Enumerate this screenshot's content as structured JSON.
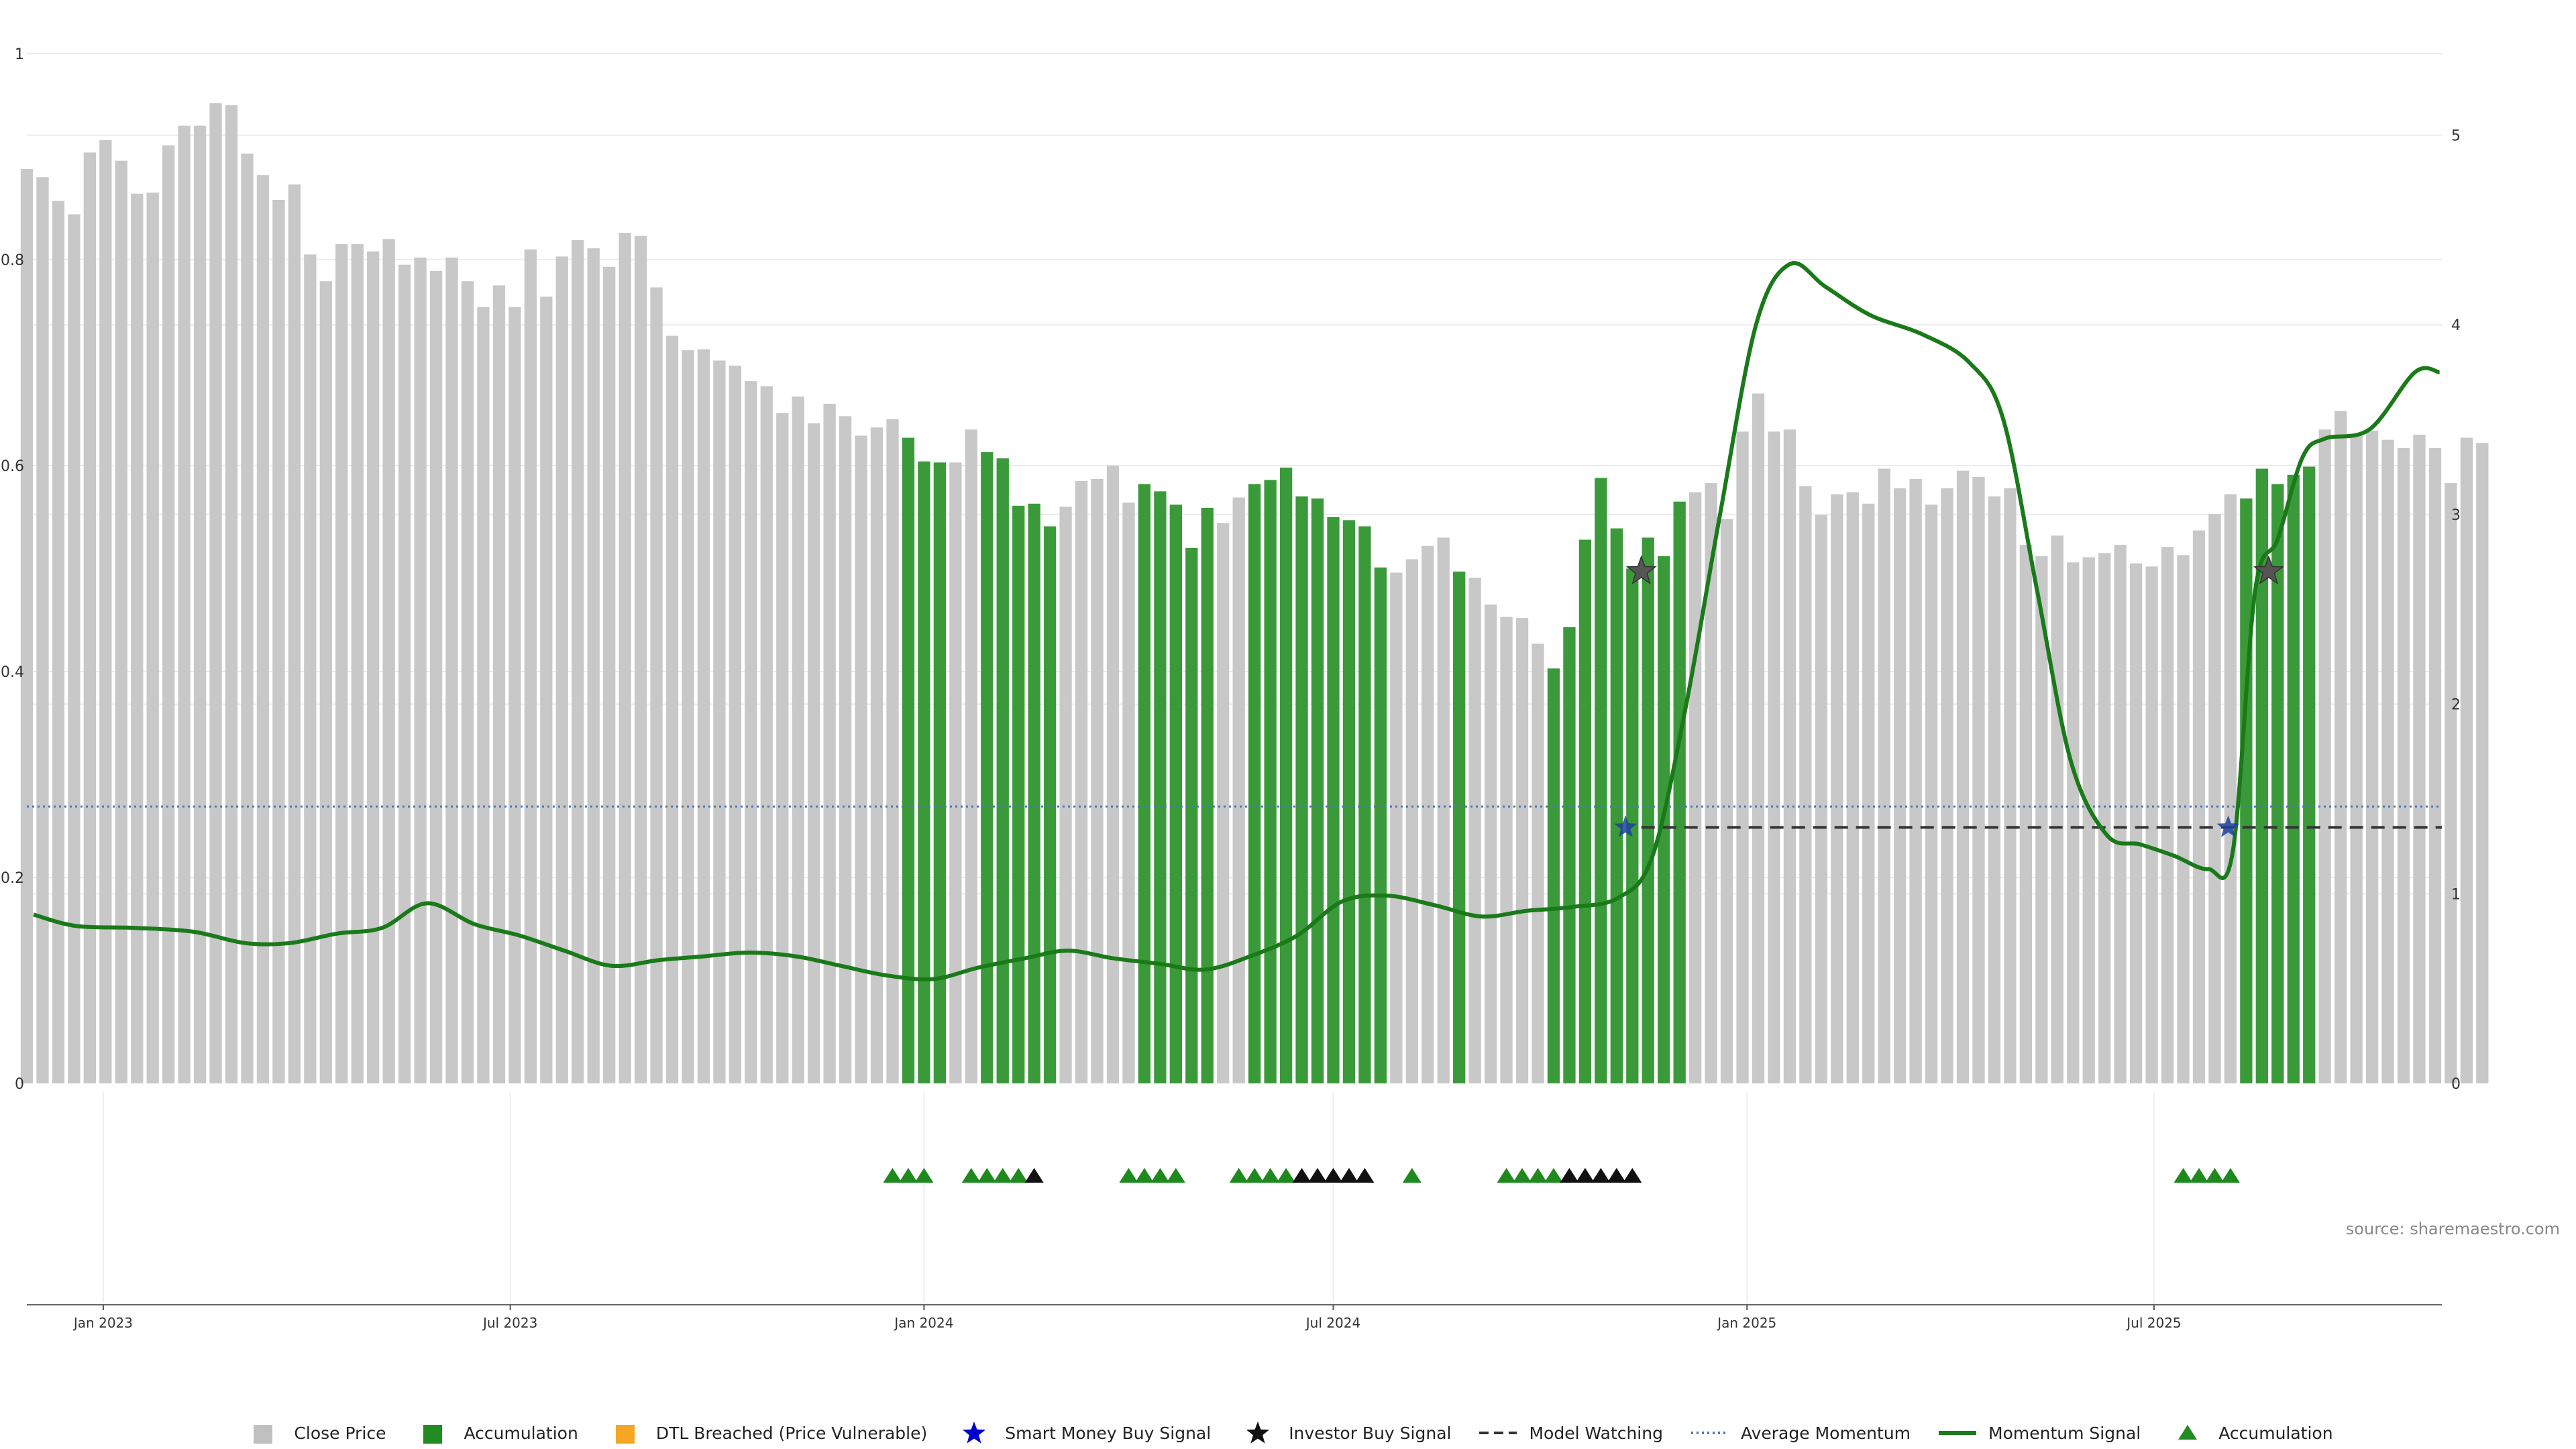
{
  "chart_data": {
    "type": "bar",
    "title": "",
    "source": "source: sharemaestro.com",
    "x_tick_labels": [
      "Jan 2023",
      "Jul 2023",
      "Jan 2024",
      "Jul 2024",
      "Jan 2025",
      "Jul 2025"
    ],
    "left_axis": {
      "ylim": [
        0,
        1
      ],
      "tick_labels": [
        "0",
        "0.2",
        "0.4",
        "0.6",
        "0.8",
        "1"
      ]
    },
    "right_axis": {
      "ylim": [
        0,
        5.43
      ],
      "tick_labels": [
        "0",
        "1",
        "2",
        "3",
        "4",
        "5"
      ]
    },
    "grid": true,
    "legend_position": "bottom",
    "x_range": [
      "2022-11-28",
      "2025-11-06"
    ],
    "close_price": {
      "start_date": "2022-11-28",
      "interval_days": 7,
      "values": [
        0.888,
        0.88,
        0.857,
        0.844,
        0.904,
        0.916,
        0.896,
        0.864,
        0.865,
        0.911,
        0.93,
        0.93,
        0.952,
        0.95,
        0.903,
        0.882,
        0.858,
        0.873,
        0.805,
        0.779,
        0.815,
        0.815,
        0.808,
        0.82,
        0.795,
        0.802,
        0.789,
        0.802,
        0.779,
        0.754,
        0.775,
        0.754,
        0.81,
        0.764,
        0.803,
        0.819,
        0.811,
        0.793,
        0.826,
        0.823,
        0.773,
        0.726,
        0.712,
        0.713,
        0.702,
        0.697,
        0.682,
        0.677,
        0.651,
        0.667,
        0.641,
        0.66,
        0.648,
        0.629,
        0.637,
        0.645,
        0.627,
        0.604,
        0.603,
        0.603,
        0.635,
        0.613,
        0.607,
        0.561,
        0.563,
        0.541,
        0.56,
        0.585,
        0.587,
        0.6,
        0.564,
        0.582,
        0.575,
        0.562,
        0.52,
        0.559,
        0.544,
        0.569,
        0.582,
        0.586,
        0.598,
        0.57,
        0.568,
        0.55,
        0.547,
        0.541,
        0.501,
        0.496,
        0.509,
        0.522,
        0.53,
        0.497,
        0.491,
        0.465,
        0.453,
        0.452,
        0.427,
        0.403,
        0.443,
        0.528,
        0.588,
        0.539,
        0.5,
        0.53,
        0.512,
        0.565,
        0.574,
        0.583,
        0.548,
        0.633,
        0.67,
        0.633,
        0.635,
        0.58,
        0.552,
        0.572,
        0.574,
        0.563,
        0.597,
        0.578,
        0.587,
        0.562,
        0.578,
        0.595,
        0.589,
        0.57,
        0.578,
        0.523,
        0.512,
        0.532,
        0.506,
        0.511,
        0.515,
        0.523,
        0.505,
        0.502,
        0.521,
        0.513,
        0.537,
        0.553,
        0.572,
        0.568,
        0.597,
        0.582,
        0.591,
        0.599,
        0.635,
        0.653,
        0.63,
        0.634,
        0.625,
        0.617,
        0.63,
        0.617,
        0.583,
        0.627,
        0.622
      ],
      "accumulation_indices": [
        56,
        57,
        58,
        61,
        62,
        63,
        64,
        65,
        71,
        72,
        73,
        74,
        75,
        78,
        79,
        80,
        81,
        82,
        83,
        84,
        85,
        86,
        91,
        97,
        98,
        99,
        100,
        101,
        102,
        103,
        104,
        105,
        141,
        142,
        143,
        144,
        145
      ]
    },
    "accumulation_markers": [
      {
        "date": "2023-12-18",
        "color": "green"
      },
      {
        "date": "2023-12-25",
        "color": "green"
      },
      {
        "date": "2024-01-01",
        "color": "green"
      },
      {
        "date": "2024-01-22",
        "color": "green"
      },
      {
        "date": "2024-01-29",
        "color": "green"
      },
      {
        "date": "2024-02-05",
        "color": "green"
      },
      {
        "date": "2024-02-12",
        "color": "green"
      },
      {
        "date": "2024-02-19",
        "color": "black"
      },
      {
        "date": "2024-04-01",
        "color": "green"
      },
      {
        "date": "2024-04-08",
        "color": "green"
      },
      {
        "date": "2024-04-15",
        "color": "green"
      },
      {
        "date": "2024-04-22",
        "color": "green"
      },
      {
        "date": "2024-05-20",
        "color": "green"
      },
      {
        "date": "2024-05-27",
        "color": "green"
      },
      {
        "date": "2024-06-03",
        "color": "green"
      },
      {
        "date": "2024-06-10",
        "color": "green"
      },
      {
        "date": "2024-06-17",
        "color": "black"
      },
      {
        "date": "2024-06-24",
        "color": "black"
      },
      {
        "date": "2024-07-01",
        "color": "black"
      },
      {
        "date": "2024-07-08",
        "color": "black"
      },
      {
        "date": "2024-07-15",
        "color": "black"
      },
      {
        "date": "2024-08-05",
        "color": "green"
      },
      {
        "date": "2024-09-16",
        "color": "green"
      },
      {
        "date": "2024-09-23",
        "color": "green"
      },
      {
        "date": "2024-09-30",
        "color": "green"
      },
      {
        "date": "2024-10-07",
        "color": "green"
      },
      {
        "date": "2024-10-14",
        "color": "black"
      },
      {
        "date": "2024-10-21",
        "color": "black"
      },
      {
        "date": "2024-10-28",
        "color": "black"
      },
      {
        "date": "2024-11-04",
        "color": "black"
      },
      {
        "date": "2024-11-11",
        "color": "black"
      },
      {
        "date": "2025-07-14",
        "color": "green"
      },
      {
        "date": "2025-07-21",
        "color": "green"
      },
      {
        "date": "2025-07-28",
        "color": "green"
      },
      {
        "date": "2025-08-04",
        "color": "green"
      }
    ],
    "momentum_signal": [
      {
        "date": "2022-12-01",
        "y": 0.89
      },
      {
        "date": "2022-12-20",
        "y": 0.83
      },
      {
        "date": "2023-01-15",
        "y": 0.82
      },
      {
        "date": "2023-02-10",
        "y": 0.8
      },
      {
        "date": "2023-03-05",
        "y": 0.74
      },
      {
        "date": "2023-03-25",
        "y": 0.74
      },
      {
        "date": "2023-04-15",
        "y": 0.79
      },
      {
        "date": "2023-05-05",
        "y": 0.82
      },
      {
        "date": "2023-05-25",
        "y": 0.95
      },
      {
        "date": "2023-06-15",
        "y": 0.84
      },
      {
        "date": "2023-07-05",
        "y": 0.78
      },
      {
        "date": "2023-07-25",
        "y": 0.7
      },
      {
        "date": "2023-08-15",
        "y": 0.62
      },
      {
        "date": "2023-09-05",
        "y": 0.65
      },
      {
        "date": "2023-09-25",
        "y": 0.67
      },
      {
        "date": "2023-10-15",
        "y": 0.69
      },
      {
        "date": "2023-11-05",
        "y": 0.67
      },
      {
        "date": "2023-11-25",
        "y": 0.62
      },
      {
        "date": "2023-12-15",
        "y": 0.57
      },
      {
        "date": "2024-01-05",
        "y": 0.55
      },
      {
        "date": "2024-01-25",
        "y": 0.61
      },
      {
        "date": "2024-02-15",
        "y": 0.66
      },
      {
        "date": "2024-03-05",
        "y": 0.7
      },
      {
        "date": "2024-03-25",
        "y": 0.66
      },
      {
        "date": "2024-04-15",
        "y": 0.63
      },
      {
        "date": "2024-05-05",
        "y": 0.6
      },
      {
        "date": "2024-05-25",
        "y": 0.67
      },
      {
        "date": "2024-06-15",
        "y": 0.78
      },
      {
        "date": "2024-07-05",
        "y": 0.96
      },
      {
        "date": "2024-07-25",
        "y": 0.99
      },
      {
        "date": "2024-08-15",
        "y": 0.94
      },
      {
        "date": "2024-09-05",
        "y": 0.88
      },
      {
        "date": "2024-09-25",
        "y": 0.91
      },
      {
        "date": "2024-10-15",
        "y": 0.93
      },
      {
        "date": "2024-11-05",
        "y": 0.98
      },
      {
        "date": "2024-11-20",
        "y": 1.2
      },
      {
        "date": "2024-12-05",
        "y": 2.0
      },
      {
        "date": "2024-12-20",
        "y": 3.0
      },
      {
        "date": "2025-01-05",
        "y": 4.0
      },
      {
        "date": "2025-01-20",
        "y": 4.32
      },
      {
        "date": "2025-02-05",
        "y": 4.2
      },
      {
        "date": "2025-02-25",
        "y": 4.05
      },
      {
        "date": "2025-03-20",
        "y": 3.95
      },
      {
        "date": "2025-04-10",
        "y": 3.8
      },
      {
        "date": "2025-04-25",
        "y": 3.5
      },
      {
        "date": "2025-05-10",
        "y": 2.6
      },
      {
        "date": "2025-05-25",
        "y": 1.7
      },
      {
        "date": "2025-06-10",
        "y": 1.31
      },
      {
        "date": "2025-06-25",
        "y": 1.26
      },
      {
        "date": "2025-07-10",
        "y": 1.2
      },
      {
        "date": "2025-07-25",
        "y": 1.13
      },
      {
        "date": "2025-08-05",
        "y": 1.22
      },
      {
        "date": "2025-08-15",
        "y": 2.6
      },
      {
        "date": "2025-08-25",
        "y": 2.87
      },
      {
        "date": "2025-09-05",
        "y": 3.3
      },
      {
        "date": "2025-09-15",
        "y": 3.4
      },
      {
        "date": "2025-10-05",
        "y": 3.45
      },
      {
        "date": "2025-10-25",
        "y": 3.75
      },
      {
        "date": "2025-11-05",
        "y": 3.75
      }
    ],
    "average_momentum": 1.46,
    "model_watching": {
      "y": 1.35,
      "start": "2024-11-15",
      "end": "2025-11-06"
    },
    "investor_buy_signals": [
      {
        "date": "2024-11-15",
        "y": 2.7
      },
      {
        "date": "2025-08-21",
        "y": 2.7
      }
    ],
    "smart_money_buy_signals": [
      {
        "date": "2024-11-08",
        "y": 1.35
      },
      {
        "date": "2025-08-03",
        "y": 1.35
      }
    ],
    "legend": [
      {
        "label": "Close Price",
        "symbol": "square",
        "color": "#c0c0c0"
      },
      {
        "label": "Accumulation",
        "symbol": "square",
        "color": "#228B22"
      },
      {
        "label": "DTL Breached (Price Vulnerable)",
        "symbol": "square",
        "color": "#F5A623"
      },
      {
        "label": "Smart Money Buy Signal",
        "symbol": "star",
        "color": "#0000CC"
      },
      {
        "label": "Investor Buy Signal",
        "symbol": "star",
        "color": "#111111"
      },
      {
        "label": "Model Watching",
        "symbol": "dashed",
        "color": "#333333"
      },
      {
        "label": "Average Momentum",
        "symbol": "dotted",
        "color": "#4a7ab0"
      },
      {
        "label": "Momentum Signal",
        "symbol": "line",
        "color": "#1a7a1a"
      },
      {
        "label": "Accumulation",
        "symbol": "triangle",
        "color": "#228B22"
      }
    ]
  }
}
